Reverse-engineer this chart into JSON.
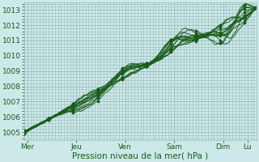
{
  "xlabel": "Pression niveau de la mer( hPa )",
  "bg_color": "#cce8e8",
  "grid_color": "#99bbbb",
  "line_color": "#1a5c1a",
  "ylim": [
    1004.5,
    1013.5
  ],
  "yticks": [
    1005,
    1006,
    1007,
    1008,
    1009,
    1010,
    1011,
    1012,
    1013
  ],
  "xlim": [
    0,
    228
  ],
  "day_positions": [
    3,
    51,
    99,
    147,
    195,
    219
  ],
  "day_labels": [
    "Mer",
    "Jeu",
    "Ven",
    "Sam",
    "Dim",
    "Lu"
  ],
  "total_hours": 228
}
